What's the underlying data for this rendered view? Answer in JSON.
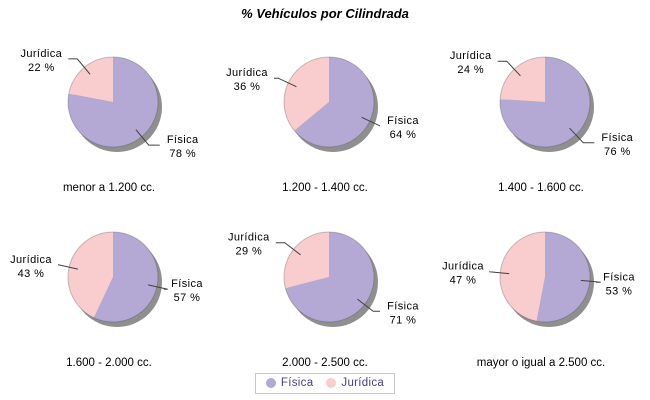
{
  "title": "% Vehículos por Cilindrada",
  "colors": {
    "fisica": "#B3A9D4",
    "juridica": "#F9CCCD",
    "slices": [
      "#B3A9D4",
      "#F9CCCD"
    ],
    "shadow": "#8F8F8F",
    "leader": "#404040",
    "outline": "rgba(70,70,70,0.3)",
    "legend_text": "#4B3C8C",
    "legend_border": "#C8C8C8"
  },
  "legend": {
    "items": [
      {
        "label": "Física",
        "color": "#B3A9D4"
      },
      {
        "label": "Jurídica",
        "color": "#F9CCCD"
      }
    ]
  },
  "chart_data": [
    {
      "type": "pie",
      "title": "menor a 1.200 cc.",
      "labels": [
        "Física",
        "Jurídica"
      ],
      "values": [
        78,
        22
      ],
      "unit": "%",
      "legend_position": "bottom"
    },
    {
      "type": "pie",
      "title": "1.200 - 1.400 cc.",
      "labels": [
        "Física",
        "Jurídica"
      ],
      "values": [
        64,
        36
      ],
      "unit": "%",
      "legend_position": "bottom"
    },
    {
      "type": "pie",
      "title": "1.400 - 1.600 cc.",
      "labels": [
        "Física",
        "Jurídica"
      ],
      "values": [
        76,
        24
      ],
      "unit": "%",
      "legend_position": "bottom"
    },
    {
      "type": "pie",
      "title": "1.600 - 2.000 cc.",
      "labels": [
        "Física",
        "Jurídica"
      ],
      "values": [
        57,
        43
      ],
      "unit": "%",
      "legend_position": "bottom"
    },
    {
      "type": "pie",
      "title": "2.000 - 2.500 cc.",
      "labels": [
        "Física",
        "Jurídica"
      ],
      "values": [
        71,
        29
      ],
      "unit": "%",
      "legend_position": "bottom"
    },
    {
      "type": "pie",
      "title": "mayor o igual a 2.500 cc.",
      "labels": [
        "Física",
        "Jurídica"
      ],
      "values": [
        53,
        47
      ],
      "unit": "%",
      "legend_position": "bottom"
    }
  ]
}
